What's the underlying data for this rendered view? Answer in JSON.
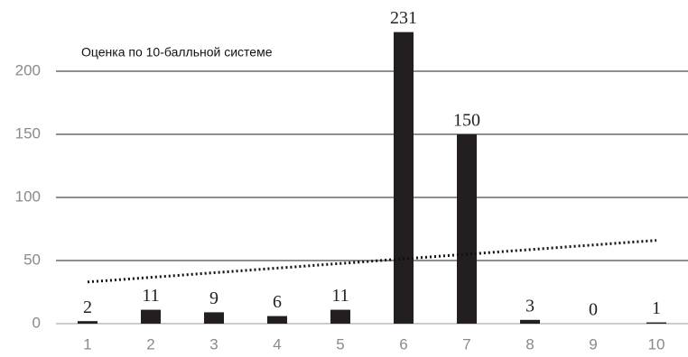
{
  "chart_data": {
    "type": "bar",
    "annotation": "Оценка по 10-балльной системе",
    "categories": [
      "1",
      "2",
      "3",
      "4",
      "5",
      "6",
      "7",
      "8",
      "9",
      "10"
    ],
    "values": [
      2,
      11,
      9,
      6,
      11,
      231,
      150,
      3,
      0,
      1
    ],
    "color": "#231f20",
    "ylim": [
      0,
      250
    ],
    "yticks": [
      0,
      50,
      100,
      150,
      200
    ],
    "grid": true,
    "trendline": [
      33,
      66
    ]
  }
}
